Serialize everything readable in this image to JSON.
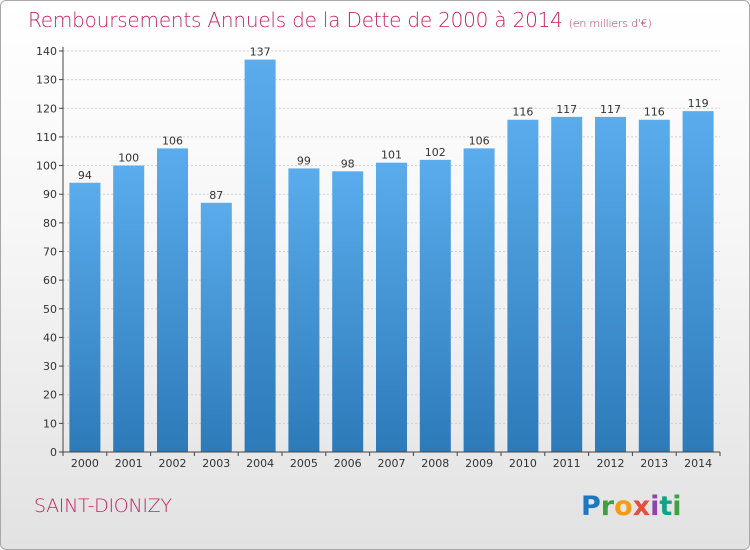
{
  "header": {
    "title": "Remboursements Annuels de la Dette de 2000 à 2014",
    "unit": "(en milliers d'€)"
  },
  "footer": {
    "commune": "SAINT-DIONIZY",
    "logo_letters": [
      "P",
      "r",
      "o",
      "x",
      "i",
      "t",
      "i"
    ]
  },
  "colors": {
    "accent": "#c4245e",
    "bar_top": "#5aacec",
    "bar_bottom": "#2d7ab9",
    "grid": "#cfcfcf",
    "axis": "#444444"
  },
  "chart_data": {
    "type": "bar",
    "title": "Remboursements Annuels de la Dette de 2000 à 2014",
    "xlabel": "",
    "ylabel": "",
    "categories": [
      "2000",
      "2001",
      "2002",
      "2003",
      "2004",
      "2005",
      "2006",
      "2007",
      "2008",
      "2009",
      "2010",
      "2011",
      "2012",
      "2013",
      "2014"
    ],
    "values": [
      94,
      100,
      106,
      87,
      137,
      99,
      98,
      101,
      102,
      106,
      116,
      117,
      117,
      116,
      119
    ],
    "ylim": [
      0,
      140
    ],
    "yticks": [
      0,
      10,
      20,
      30,
      40,
      50,
      60,
      70,
      80,
      90,
      100,
      110,
      120,
      130,
      140
    ],
    "grid": true,
    "legend": "none"
  }
}
